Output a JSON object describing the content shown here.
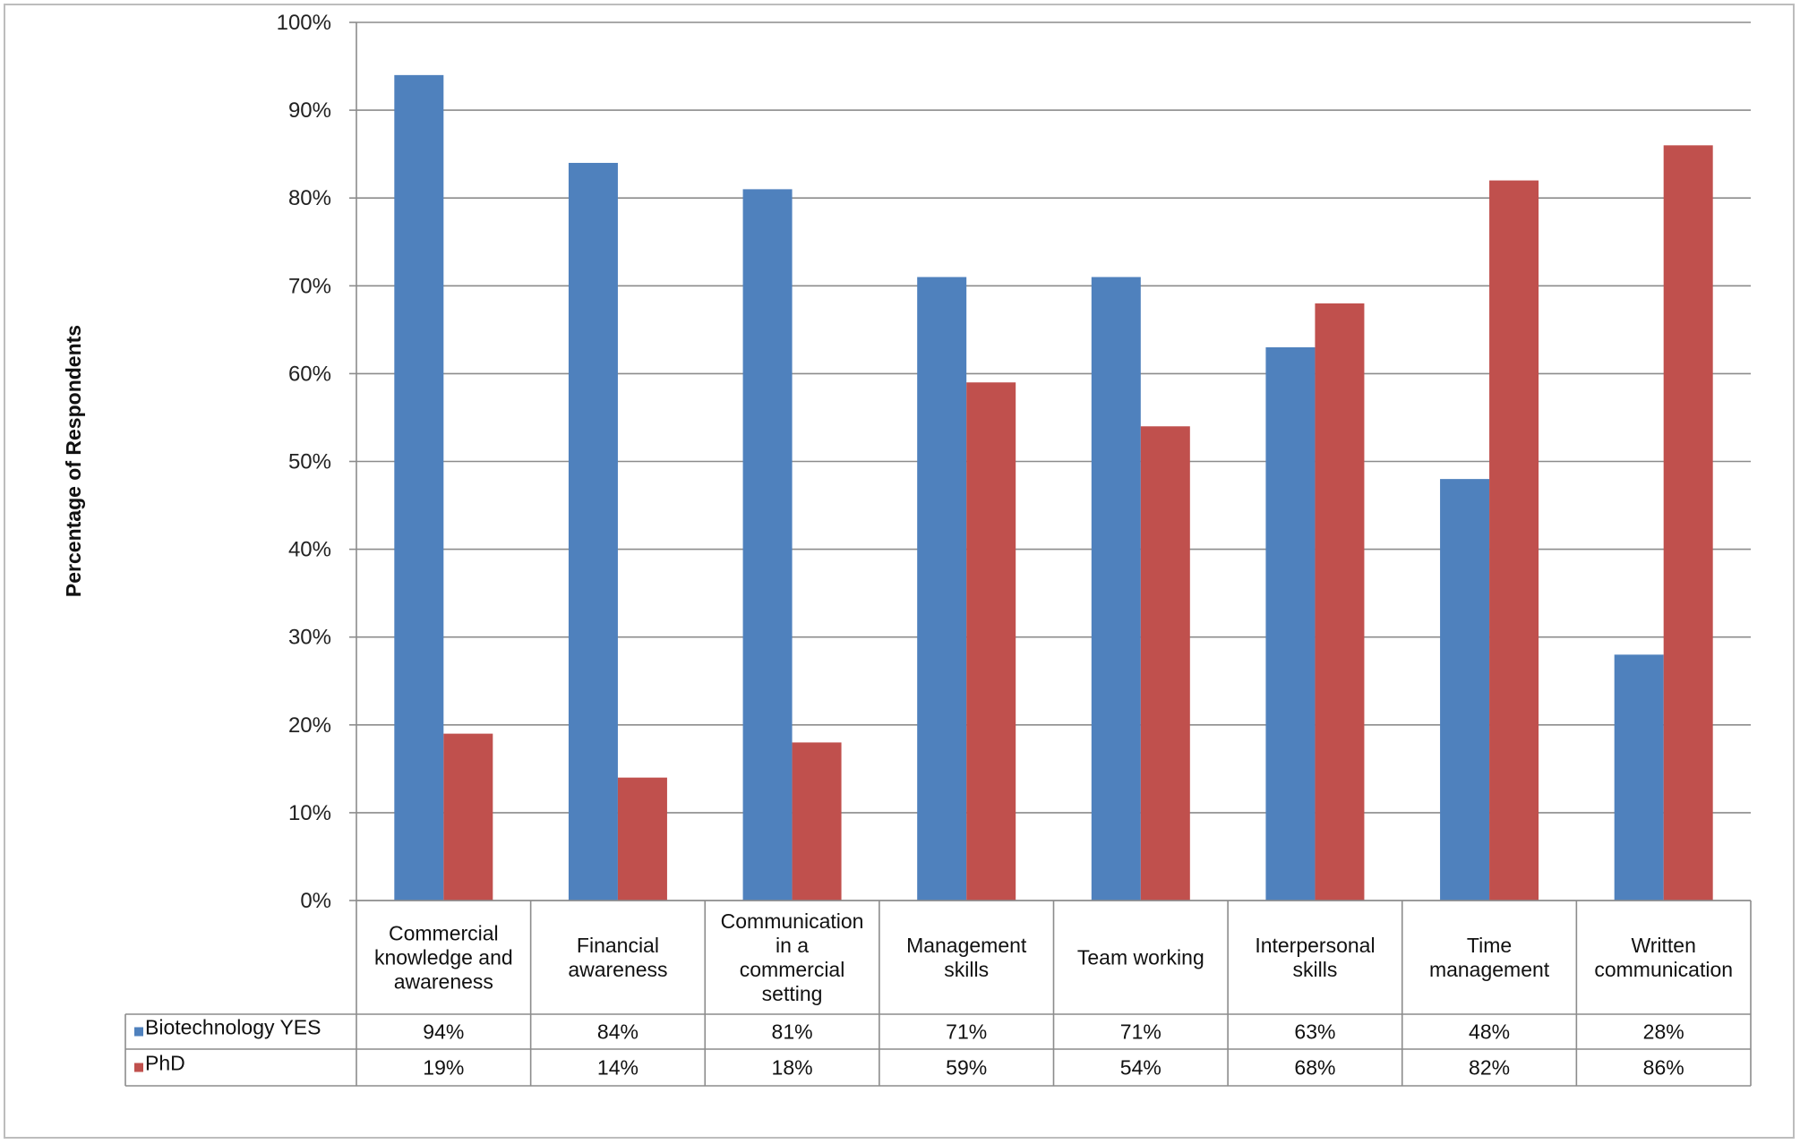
{
  "chart_data": {
    "type": "bar",
    "title": "",
    "xlabel": "",
    "ylabel": "Percentage of Respondents",
    "ylim": [
      0,
      100
    ],
    "yticks": [
      "0%",
      "10%",
      "20%",
      "30%",
      "40%",
      "50%",
      "60%",
      "70%",
      "80%",
      "90%",
      "100%"
    ],
    "grid": true,
    "legend": "data table",
    "categories": [
      [
        "Commercial",
        "knowledge and",
        "awareness"
      ],
      [
        "Financial",
        "awareness"
      ],
      [
        "Communication",
        "in a",
        "commercial",
        "setting"
      ],
      [
        "Management",
        "skills"
      ],
      [
        "Team working"
      ],
      [
        "Interpersonal",
        "skills"
      ],
      [
        "Time",
        "management"
      ],
      [
        "Written",
        "communication"
      ]
    ],
    "series": [
      {
        "name": "Biotechnology YES",
        "color": "#4f81bd",
        "values": [
          94,
          84,
          81,
          71,
          71,
          63,
          48,
          28
        ],
        "labels": [
          "94%",
          "84%",
          "81%",
          "71%",
          "71%",
          "63%",
          "48%",
          "28%"
        ]
      },
      {
        "name": "PhD",
        "color": "#c0504d",
        "values": [
          19,
          14,
          18,
          59,
          54,
          68,
          82,
          86
        ],
        "labels": [
          "19%",
          "14%",
          "18%",
          "59%",
          "54%",
          "68%",
          "82%",
          "86%"
        ]
      }
    ]
  }
}
